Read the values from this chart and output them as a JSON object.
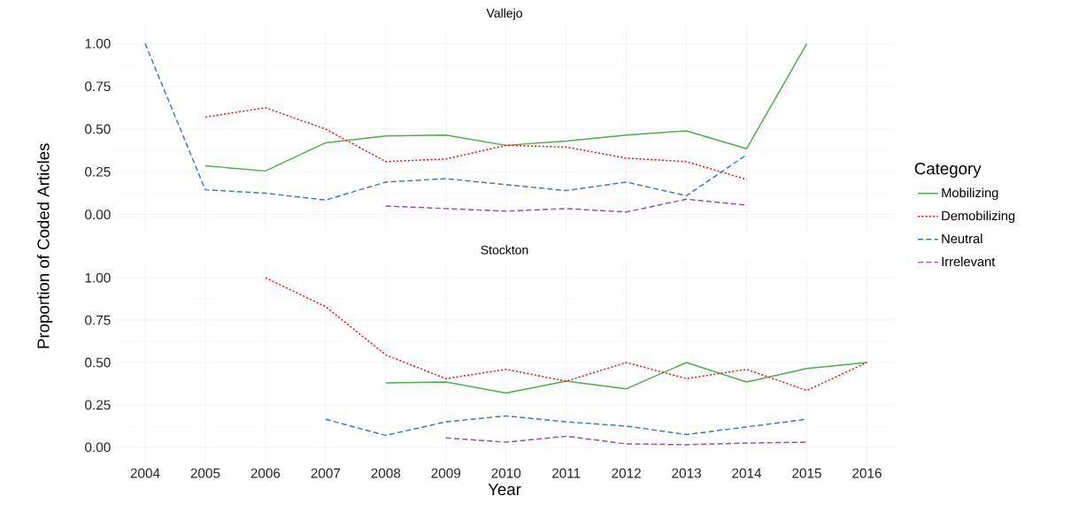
{
  "chart_data": [
    {
      "type": "line",
      "title": "Vallejo",
      "ylabel": "Proportion of Coded Articles",
      "legend_title": "Category",
      "legend": "right",
      "grid": true,
      "tick_labels": "y",
      "x": [
        2004,
        2005,
        2006,
        2007,
        2008,
        2009,
        2010,
        2011,
        2012,
        2013,
        2014,
        2015
      ],
      "xlim": [
        2003.5,
        2016.45
      ],
      "xticks": [
        2004,
        2005,
        2006,
        2007,
        2008,
        2009,
        2010,
        2011,
        2012,
        2013,
        2014,
        2015,
        2016
      ],
      "ylim": [
        -0.1,
        1.1
      ],
      "yticks": [
        {
          "value": 0,
          "label": "0.00"
        },
        {
          "value": 0.25,
          "label": "0.25"
        },
        {
          "value": 0.5,
          "label": "0.50"
        },
        {
          "value": 0.75,
          "label": "0.75"
        },
        {
          "value": 1,
          "label": "1.00"
        }
      ],
      "series": [
        {
          "name": "Mobilizing",
          "color": "#4daf4a",
          "line_style": "solid",
          "values": [
            null,
            0.285,
            0.255,
            0.42,
            0.46,
            0.465,
            0.405,
            0.43,
            0.465,
            0.49,
            0.385,
            1.0
          ]
        },
        {
          "name": "Demobilizing",
          "color": "#e41a1c",
          "line_style": "dotted",
          "values": [
            null,
            0.57,
            0.625,
            0.5,
            0.31,
            0.325,
            0.405,
            0.395,
            0.33,
            0.31,
            0.205,
            null
          ]
        },
        {
          "name": "Neutral",
          "color": "#377eb8",
          "line_style": "dashed",
          "values": [
            1.0,
            0.145,
            0.125,
            0.085,
            0.19,
            0.21,
            0.175,
            0.14,
            0.19,
            0.11,
            0.35,
            null
          ]
        },
        {
          "name": "Irrelevant",
          "color": "#984ea3",
          "line_style": "dashed",
          "values": [
            null,
            null,
            null,
            null,
            0.05,
            0.035,
            0.02,
            0.035,
            0.015,
            0.09,
            0.055,
            null
          ]
        }
      ]
    },
    {
      "type": "line",
      "title": "Stockton",
      "xlabel": "Year",
      "grid": true,
      "x": [
        2006,
        2007,
        2008,
        2009,
        2010,
        2011,
        2012,
        2013,
        2014,
        2015,
        2016
      ],
      "xlim": [
        2003.5,
        2016.45
      ],
      "xticks": [
        2004,
        2005,
        2006,
        2007,
        2008,
        2009,
        2010,
        2011,
        2012,
        2013,
        2014,
        2015,
        2016
      ],
      "ylim": [
        -0.1,
        1.1
      ],
      "yticks": [
        {
          "value": 0,
          "label": "0.00"
        },
        {
          "value": 0.25,
          "label": "0.25"
        },
        {
          "value": 0.5,
          "label": "0.50"
        },
        {
          "value": 0.75,
          "label": "0.75"
        },
        {
          "value": 1,
          "label": "1.00"
        }
      ],
      "series": [
        {
          "color": "#4daf4a",
          "line_style": "solid",
          "values": [
            null,
            null,
            0.38,
            0.385,
            0.32,
            0.39,
            0.345,
            0.5,
            0.385,
            0.465,
            0.5
          ]
        },
        {
          "color": "#e41a1c",
          "line_style": "dotted",
          "values": [
            1.0,
            0.83,
            0.545,
            0.405,
            0.46,
            0.39,
            0.5,
            0.405,
            0.46,
            0.335,
            0.5
          ]
        },
        {
          "color": "#377eb8",
          "line_style": "dashed",
          "values": [
            null,
            0.165,
            0.07,
            0.15,
            0.185,
            0.15,
            0.125,
            0.075,
            0.12,
            0.165,
            null
          ]
        },
        {
          "color": "#984ea3",
          "line_style": "dashed",
          "values": [
            null,
            null,
            null,
            0.055,
            0.03,
            0.065,
            0.02,
            0.015,
            0.025,
            0.03,
            null
          ]
        }
      ]
    }
  ]
}
